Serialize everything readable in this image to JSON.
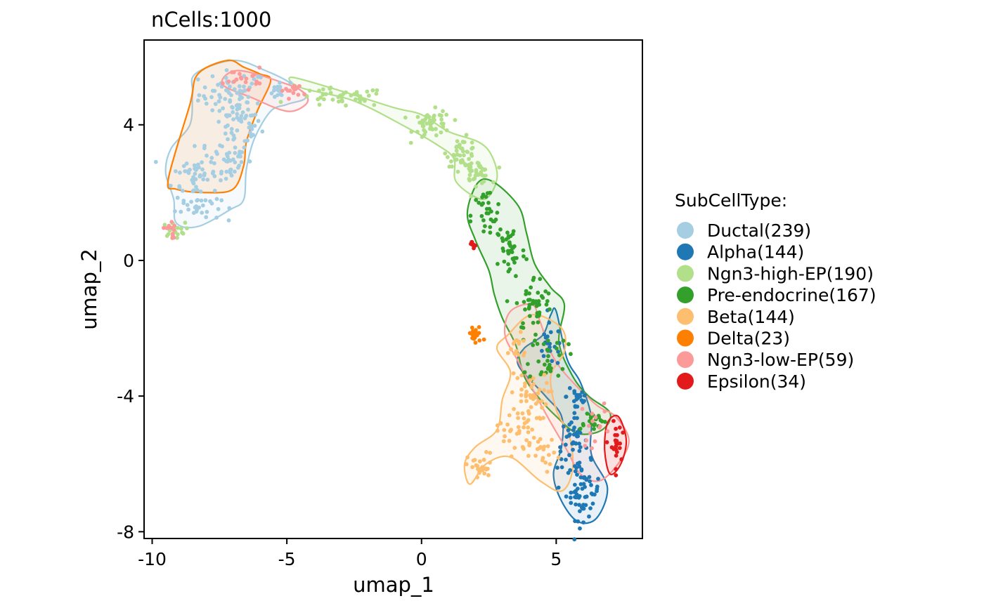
{
  "chart_data": {
    "type": "scatter",
    "title": "nCells:1000",
    "xlabel": "umap_1",
    "ylabel": "umap_2",
    "xlim": [
      -10.3,
      8.2
    ],
    "ylim": [
      -8.2,
      6.5
    ],
    "xticks": [
      -10,
      -5,
      0,
      5
    ],
    "xtick_labels": [
      "-10",
      "-5",
      "0",
      "5"
    ],
    "yticks": [
      -8,
      -4,
      0,
      4
    ],
    "ytick_labels": [
      "-8",
      "-4",
      "0",
      "4"
    ],
    "grid": false,
    "legend_position": "right",
    "legend_title": "SubCellType:",
    "series": [
      {
        "name": "Ductal(239)",
        "color": "#A6CEE3",
        "count": 239,
        "hull": [
          [
            -8.4,
            5.5
          ],
          [
            -7.0,
            5.9
          ],
          [
            -5.8,
            5.6
          ],
          [
            -4.8,
            5.2
          ],
          [
            -4.3,
            4.8
          ],
          [
            -5.0,
            4.6
          ],
          [
            -5.6,
            4.4
          ],
          [
            -6.2,
            3.6
          ],
          [
            -6.5,
            2.7
          ],
          [
            -6.6,
            1.8
          ],
          [
            -7.1,
            1.5
          ],
          [
            -8.3,
            1.0
          ],
          [
            -9.1,
            1.1
          ],
          [
            -9.2,
            1.8
          ],
          [
            -9.5,
            2.6
          ],
          [
            -9.3,
            3.3
          ],
          [
            -8.6,
            4.0
          ],
          [
            -8.5,
            4.9
          ]
        ],
        "blobs": [
          {
            "c": [
              -7.0,
              4.9
            ],
            "s": [
              0.9,
              0.5
            ],
            "n": 60
          },
          {
            "c": [
              -6.8,
              4.0
            ],
            "s": [
              0.6,
              0.5
            ],
            "n": 45
          },
          {
            "c": [
              -7.3,
              3.0
            ],
            "s": [
              0.7,
              0.5
            ],
            "n": 45
          },
          {
            "c": [
              -8.4,
              2.5
            ],
            "s": [
              0.6,
              0.5
            ],
            "n": 45
          },
          {
            "c": [
              -8.3,
              1.6
            ],
            "s": [
              0.6,
              0.3
            ],
            "n": 29
          },
          {
            "c": [
              -5.3,
              5.0
            ],
            "s": [
              0.3,
              0.2
            ],
            "n": 15
          }
        ]
      },
      {
        "name": "Alpha(144)",
        "color": "#1F78B4",
        "count": 144,
        "hull": [
          [
            5.0,
            -1.5
          ],
          [
            5.4,
            -2.9
          ],
          [
            5.9,
            -3.6
          ],
          [
            6.3,
            -4.6
          ],
          [
            6.3,
            -5.7
          ],
          [
            6.9,
            -6.7
          ],
          [
            6.5,
            -7.6
          ],
          [
            5.8,
            -7.7
          ],
          [
            5.2,
            -7.1
          ],
          [
            4.9,
            -6.3
          ],
          [
            5.2,
            -5.5
          ],
          [
            5.2,
            -4.6
          ],
          [
            4.6,
            -4.0
          ],
          [
            3.6,
            -3.1
          ],
          [
            3.8,
            -2.6
          ],
          [
            4.5,
            -2.2
          ],
          [
            4.8,
            -1.6
          ]
        ],
        "blobs": [
          {
            "c": [
              6.0,
              -6.8
            ],
            "s": [
              0.45,
              0.6
            ],
            "n": 60
          },
          {
            "c": [
              5.6,
              -5.4
            ],
            "s": [
              0.4,
              0.55
            ],
            "n": 42
          },
          {
            "c": [
              5.8,
              -4.0
            ],
            "s": [
              0.3,
              0.4
            ],
            "n": 22
          },
          {
            "c": [
              4.8,
              -2.5
            ],
            "s": [
              0.4,
              0.45
            ],
            "n": 20
          }
        ]
      },
      {
        "name": "Ngn3-high-EP(190)",
        "color": "#B2DF8A",
        "count": 190,
        "hull": [
          [
            -4.8,
            5.4
          ],
          [
            -3.0,
            5.0
          ],
          [
            -1.0,
            4.5
          ],
          [
            0.0,
            4.3
          ],
          [
            1.0,
            3.8
          ],
          [
            2.1,
            3.5
          ],
          [
            2.6,
            3.1
          ],
          [
            2.8,
            2.4
          ],
          [
            2.3,
            1.8
          ],
          [
            1.3,
            2.3
          ],
          [
            1.2,
            3.0
          ],
          [
            0.6,
            3.4
          ],
          [
            -0.5,
            3.9
          ],
          [
            -2.5,
            4.7
          ],
          [
            -4.5,
            5.1
          ]
        ],
        "blobs": [
          {
            "c": [
              -3.0,
              4.8
            ],
            "s": [
              1.2,
              0.2
            ],
            "n": 42
          },
          {
            "c": [
              0.4,
              4.0
            ],
            "s": [
              0.5,
              0.3
            ],
            "n": 48
          },
          {
            "c": [
              1.5,
              3.2
            ],
            "s": [
              0.4,
              0.3
            ],
            "n": 40
          },
          {
            "c": [
              2.0,
              2.6
            ],
            "s": [
              0.4,
              0.25
            ],
            "n": 40
          },
          {
            "c": [
              -9.2,
              0.9
            ],
            "s": [
              0.3,
              0.15
            ],
            "n": 20
          }
        ]
      },
      {
        "name": "Pre-endocrine(167)",
        "color": "#33A02C",
        "count": 167,
        "hull": [
          [
            2.1,
            2.3
          ],
          [
            2.7,
            2.3
          ],
          [
            3.6,
            1.6
          ],
          [
            3.9,
            0.8
          ],
          [
            4.2,
            -0.1
          ],
          [
            4.8,
            -0.8
          ],
          [
            5.3,
            -1.3
          ],
          [
            5.1,
            -2.4
          ],
          [
            5.6,
            -3.4
          ],
          [
            6.2,
            -4.0
          ],
          [
            7.0,
            -4.5
          ],
          [
            6.7,
            -5.0
          ],
          [
            5.8,
            -5.1
          ],
          [
            5.0,
            -4.6
          ],
          [
            4.3,
            -4.0
          ],
          [
            3.8,
            -3.4
          ],
          [
            3.5,
            -2.5
          ],
          [
            3.0,
            -1.7
          ],
          [
            2.7,
            -1.0
          ],
          [
            2.5,
            -0.3
          ],
          [
            2.0,
            0.6
          ],
          [
            1.7,
            1.4
          ]
        ],
        "blobs": [
          {
            "c": [
              2.4,
              1.3
            ],
            "s": [
              0.4,
              0.6
            ],
            "n": 30
          },
          {
            "c": [
              3.3,
              0.3
            ],
            "s": [
              0.4,
              0.6
            ],
            "n": 40
          },
          {
            "c": [
              4.2,
              -1.3
            ],
            "s": [
              0.5,
              0.6
            ],
            "n": 45
          },
          {
            "c": [
              4.7,
              -2.8
            ],
            "s": [
              0.5,
              0.6
            ],
            "n": 32
          },
          {
            "c": [
              6.3,
              -4.7
            ],
            "s": [
              0.4,
              0.2
            ],
            "n": 20
          }
        ]
      },
      {
        "name": "Beta(144)",
        "color": "#FDBF6F",
        "count": 144,
        "hull": [
          [
            3.2,
            -2.2
          ],
          [
            4.1,
            -1.6
          ],
          [
            5.2,
            -2.0
          ],
          [
            5.3,
            -2.7
          ],
          [
            4.8,
            -3.4
          ],
          [
            5.0,
            -4.4
          ],
          [
            5.5,
            -5.2
          ],
          [
            5.6,
            -6.2
          ],
          [
            5.2,
            -6.8
          ],
          [
            4.4,
            -6.5
          ],
          [
            3.3,
            -5.8
          ],
          [
            2.4,
            -6.0
          ],
          [
            1.8,
            -6.6
          ],
          [
            1.6,
            -6.0
          ],
          [
            2.0,
            -5.5
          ],
          [
            2.8,
            -5.0
          ],
          [
            3.0,
            -4.1
          ],
          [
            3.3,
            -3.3
          ],
          [
            2.8,
            -2.6
          ]
        ],
        "blobs": [
          {
            "c": [
              3.5,
              -2.6
            ],
            "s": [
              0.4,
              0.3
            ],
            "n": 16
          },
          {
            "c": [
              4.0,
              -4.0
            ],
            "s": [
              0.5,
              0.5
            ],
            "n": 40
          },
          {
            "c": [
              3.5,
              -5.0
            ],
            "s": [
              0.5,
              0.5
            ],
            "n": 38
          },
          {
            "c": [
              2.2,
              -6.1
            ],
            "s": [
              0.35,
              0.3
            ],
            "n": 30
          },
          {
            "c": [
              4.6,
              -5.8
            ],
            "s": [
              0.4,
              0.4
            ],
            "n": 20
          }
        ]
      },
      {
        "name": "Delta(23)",
        "color": "#FF7F00",
        "count": 23,
        "hull": [
          [
            -9.4,
            2.4
          ],
          [
            -8.6,
            4.6
          ],
          [
            -8.3,
            5.5
          ],
          [
            -7.2,
            5.9
          ],
          [
            -6.6,
            5.7
          ],
          [
            -6.0,
            5.5
          ],
          [
            -5.6,
            5.3
          ],
          [
            -6.1,
            4.4
          ],
          [
            -6.5,
            3.5
          ],
          [
            -6.6,
            2.8
          ],
          [
            -7.0,
            2.1
          ],
          [
            -8.0,
            2.0
          ],
          [
            -9.1,
            2.1
          ]
        ],
        "blobs": [
          {
            "c": [
              2.0,
              -2.2
            ],
            "s": [
              0.2,
              0.2
            ],
            "n": 23
          }
        ]
      },
      {
        "name": "Ngn3-low-EP(59)",
        "color": "#FB9A99",
        "count": 59,
        "hull": [
          [
            -6.8,
            5.6
          ],
          [
            -5.0,
            5.2
          ],
          [
            -4.3,
            4.9
          ],
          [
            -4.3,
            4.6
          ],
          [
            -5.0,
            4.4
          ],
          [
            -6.3,
            4.8
          ],
          [
            -7.4,
            5.2
          ],
          [
            3.3,
            -1.5
          ],
          [
            4.1,
            -1.3
          ],
          [
            4.4,
            -1.8
          ],
          [
            5.0,
            -3.0
          ],
          [
            6.4,
            -4.2
          ],
          [
            7.2,
            -4.6
          ],
          [
            7.7,
            -5.3
          ],
          [
            7.3,
            -6.0
          ],
          [
            6.6,
            -6.5
          ],
          [
            5.9,
            -6.3
          ],
          [
            5.4,
            -5.6
          ],
          [
            4.6,
            -4.5
          ],
          [
            3.6,
            -3.0
          ],
          [
            3.1,
            -2.2
          ]
        ],
        "blobs": [
          {
            "c": [
              -6.6,
              5.4
            ],
            "s": [
              0.5,
              0.2
            ],
            "n": 18
          },
          {
            "c": [
              -4.8,
              5.0
            ],
            "s": [
              0.3,
              0.15
            ],
            "n": 14
          },
          {
            "c": [
              6.5,
              -4.8
            ],
            "s": [
              0.4,
              0.5
            ],
            "n": 15
          },
          {
            "c": [
              -9.3,
              0.9
            ],
            "s": [
              0.2,
              0.2
            ],
            "n": 12
          }
        ]
      },
      {
        "name": "Epsilon(34)",
        "color": "#E31A1C",
        "count": 34,
        "hull": [
          [
            6.9,
            -4.8
          ],
          [
            7.3,
            -4.6
          ],
          [
            7.6,
            -5.3
          ],
          [
            7.4,
            -6.0
          ],
          [
            7.0,
            -6.3
          ],
          [
            6.8,
            -5.6
          ]
        ],
        "blobs": [
          {
            "c": [
              7.2,
              -5.5
            ],
            "s": [
              0.15,
              0.5
            ],
            "n": 24
          },
          {
            "c": [
              1.9,
              0.5
            ],
            "s": [
              0.15,
              0.1
            ],
            "n": 10
          }
        ]
      }
    ]
  }
}
